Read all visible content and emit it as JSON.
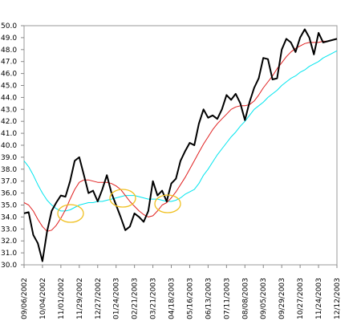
{
  "chart_data": {
    "type": "line",
    "categories": [
      "09/06/2002",
      null,
      null,
      null,
      "10/04/2002",
      null,
      null,
      null,
      "11/01/2002",
      null,
      null,
      null,
      "11/29/2002",
      null,
      null,
      null,
      "12/27/2002",
      null,
      null,
      null,
      "01/24/2003",
      null,
      null,
      null,
      "02/21/2003",
      null,
      null,
      null,
      "03/21/2003",
      null,
      null,
      null,
      "04/18/2003",
      null,
      null,
      null,
      "05/16/2003",
      null,
      null,
      null,
      "06/13/2003",
      null,
      null,
      null,
      "07/11/2003",
      null,
      null,
      null,
      "08/08/2003",
      null,
      null,
      null,
      "09/05/2003",
      null,
      null,
      null,
      "09/29/2003",
      null,
      null,
      null,
      "10/27/2003",
      null,
      null,
      null,
      "11/24/2003",
      null,
      null,
      null,
      "12/12/2003"
    ],
    "series": [
      {
        "color": "#00e5ee",
        "width": 1,
        "values": [
          38.7,
          38.2,
          37.5,
          36.7,
          36,
          35.4,
          35,
          34.7,
          34.5,
          34.5,
          34.6,
          34.8,
          35,
          35.1,
          35.2,
          35.2,
          35.3,
          35.3,
          35.4,
          35.5,
          35.6,
          35.7,
          35.8,
          35.8,
          35.8,
          35.7,
          35.6,
          35.5,
          35.5,
          35.5,
          35.4,
          35.3,
          35.3,
          35.4,
          35.6,
          35.9,
          36.1,
          36.3,
          36.8,
          37.5,
          38,
          38.6,
          39.2,
          39.7,
          40.2,
          40.7,
          41.1,
          41.6,
          42,
          42.5,
          43,
          43.3,
          43.6,
          44,
          44.3,
          44.6,
          45,
          45.3,
          45.6,
          45.8,
          46.1,
          46.3,
          46.6,
          46.8,
          47,
          47.3,
          47.5,
          47.7,
          47.9
        ]
      },
      {
        "color": "#e02020",
        "width": 1,
        "values": [
          35.2,
          35,
          34.5,
          33.8,
          33.2,
          32.8,
          32.9,
          33.3,
          33.9,
          34.6,
          35.5,
          36.3,
          36.9,
          37.1,
          37.1,
          37.0,
          36.9,
          36.9,
          36.9,
          36.8,
          36.6,
          36.3,
          35.8,
          35.3,
          34.9,
          34.5,
          34.2,
          34.0,
          34.1,
          34.5,
          35,
          35.2,
          35.6,
          36.1,
          36.7,
          37.3,
          38.0,
          38.7,
          39.4,
          40.1,
          40.7,
          41.3,
          41.8,
          42.2,
          42.6,
          43.0,
          43.2,
          43.3,
          43.3,
          43.4,
          43.7,
          44.2,
          44.8,
          45.3,
          45.8,
          46.4,
          46.9,
          47.4,
          47.8,
          48.1,
          48.3,
          48.5,
          48.6,
          48.6,
          48.6,
          48.7,
          48.7,
          48.8,
          48.9
        ]
      },
      {
        "color": "#000000",
        "width": 2,
        "values": [
          34.3,
          34.4,
          32.5,
          31.8,
          30.3,
          32.8,
          34.5,
          35.2,
          35.8,
          35.7,
          37,
          38.7,
          39.0,
          37.5,
          36,
          36.2,
          35.3,
          36.3,
          37.5,
          36,
          35,
          34,
          32.9,
          33.2,
          34.3,
          34,
          33.6,
          34.5,
          37,
          35.8,
          36.2,
          35.3,
          36.8,
          37.2,
          38.7,
          39.5,
          40.2,
          40,
          41.8,
          43,
          42.3,
          42.5,
          42.2,
          43,
          44.2,
          43.8,
          44.3,
          43.5,
          42.1,
          43.6,
          44.8,
          45.6,
          47.3,
          47.2,
          45.5,
          45.6,
          48,
          48.9,
          48.6,
          47.8,
          49,
          49.7,
          49,
          47.6,
          49.4,
          48.6,
          48.7,
          48.8,
          48.9
        ]
      }
    ],
    "ylim": [
      30,
      50
    ],
    "yticks": [
      {
        "value": 30,
        "label": "30.0"
      },
      {
        "value": 31,
        "label": "31.0"
      },
      {
        "value": 32,
        "label": "32.0"
      },
      {
        "value": 33,
        "label": "33.0"
      },
      {
        "value": 34,
        "label": "34.0"
      },
      {
        "value": 35,
        "label": "35.0"
      },
      {
        "value": 36,
        "label": "36.0"
      },
      {
        "value": 37,
        "label": "37.0"
      },
      {
        "value": 38,
        "label": "38.0"
      },
      {
        "value": 39,
        "label": "39.0"
      },
      {
        "value": 40,
        "label": "40.0"
      },
      {
        "value": 41,
        "label": "41.0"
      },
      {
        "value": 42,
        "label": "42.0"
      },
      {
        "value": 43,
        "label": "43.0"
      },
      {
        "value": 44,
        "label": "44.0"
      },
      {
        "value": 45,
        "label": "45.0"
      },
      {
        "value": 46,
        "label": "46.0"
      },
      {
        "value": 47,
        "label": "47.0"
      },
      {
        "value": 48,
        "label": "48.0"
      },
      {
        "value": 49,
        "label": "49.0"
      },
      {
        "value": 50,
        "label": "50.0"
      }
    ]
  }
}
